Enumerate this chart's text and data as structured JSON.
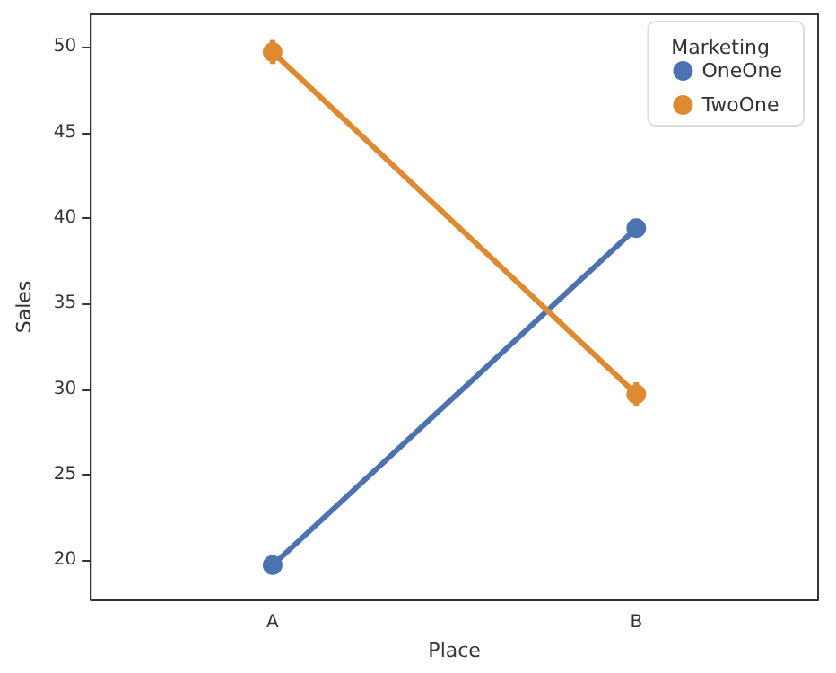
{
  "chart_data": {
    "type": "line",
    "xlabel": "Place",
    "ylabel": "Sales",
    "legend_title": "Marketing",
    "categories": [
      "A",
      "B"
    ],
    "series": [
      {
        "name": "OneOne",
        "color": "#4c72b0",
        "values": [
          19.7,
          39.4
        ],
        "errors": [
          0.3,
          0.3
        ]
      },
      {
        "name": "TwoOne",
        "color": "#dd8a30",
        "values": [
          49.7,
          29.7
        ],
        "errors": [
          0.7,
          0.7
        ]
      }
    ],
    "ylim": [
      17.7,
      51.9
    ],
    "yticks": [
      20,
      25,
      30,
      35,
      40,
      45,
      50
    ],
    "grid": false,
    "legend": "top right",
    "marker": "circle",
    "line_style": "solid"
  }
}
